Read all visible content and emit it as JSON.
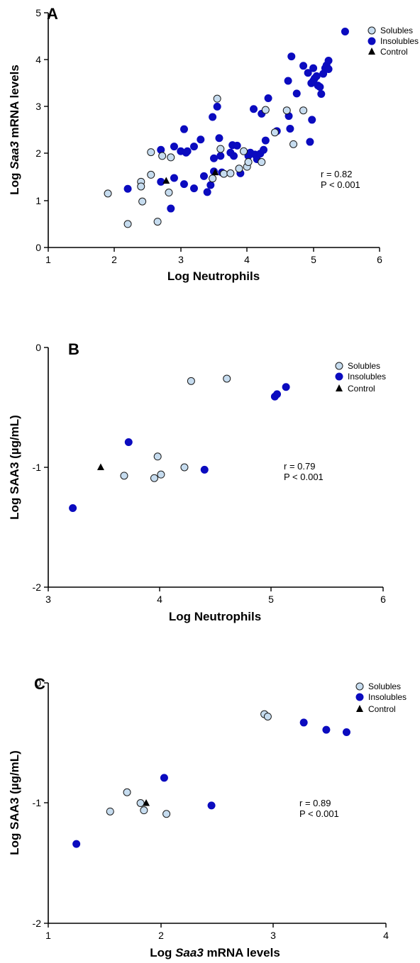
{
  "colors": {
    "solubles_fill": "#c6dcef",
    "solubles_stroke": "#1a1a1a",
    "insolubles_fill": "#0b0bbf",
    "control_fill": "#000000"
  },
  "chart_data": [
    {
      "panel": "A",
      "type": "scatter",
      "xlabel": "Log Neutrophils",
      "ylabel_pre": "Log ",
      "ylabel_italic": "Saa3",
      "ylabel_post": " mRNA levels",
      "xlim": [
        1,
        6
      ],
      "ylim": [
        0,
        5
      ],
      "xticks": [
        "1",
        "2",
        "3",
        "4",
        "5",
        "6"
      ],
      "yticks": [
        "0",
        "1",
        "2",
        "3",
        "4",
        "5"
      ],
      "legend": [
        "Solubles",
        "Insolubles",
        "Control"
      ],
      "stat_r": "r = 0.82",
      "stat_p": "P < 0.001",
      "series": [
        {
          "name": "Solubles",
          "points": [
            [
              1.9,
              1.15
            ],
            [
              2.2,
              0.5
            ],
            [
              2.4,
              1.4
            ],
            [
              2.4,
              1.3
            ],
            [
              2.42,
              0.98
            ],
            [
              2.55,
              2.03
            ],
            [
              2.55,
              1.55
            ],
            [
              2.65,
              0.55
            ],
            [
              2.72,
              1.95
            ],
            [
              2.82,
              1.17
            ],
            [
              2.85,
              1.92
            ],
            [
              3.48,
              1.47
            ],
            [
              3.55,
              3.17
            ],
            [
              3.6,
              2.1
            ],
            [
              3.65,
              1.57
            ],
            [
              3.75,
              1.58
            ],
            [
              3.88,
              1.68
            ],
            [
              3.95,
              2.05
            ],
            [
              4.0,
              1.72
            ],
            [
              4.02,
              1.82
            ],
            [
              4.22,
              1.82
            ],
            [
              4.28,
              2.93
            ],
            [
              4.42,
              2.45
            ],
            [
              4.6,
              2.92
            ],
            [
              4.7,
              2.2
            ],
            [
              4.85,
              2.92
            ]
          ]
        },
        {
          "name": "Insolubles",
          "points": [
            [
              2.2,
              1.25
            ],
            [
              2.7,
              2.08
            ],
            [
              2.7,
              1.4
            ],
            [
              2.85,
              0.83
            ],
            [
              2.9,
              2.15
            ],
            [
              2.9,
              1.48
            ],
            [
              3.0,
              2.05
            ],
            [
              3.05,
              1.35
            ],
            [
              3.05,
              2.52
            ],
            [
              3.08,
              2.02
            ],
            [
              3.1,
              2.05
            ],
            [
              3.2,
              2.15
            ],
            [
              3.2,
              1.26
            ],
            [
              3.3,
              2.3
            ],
            [
              3.35,
              1.52
            ],
            [
              3.4,
              1.18
            ],
            [
              3.45,
              1.33
            ],
            [
              3.48,
              2.78
            ],
            [
              3.5,
              1.9
            ],
            [
              3.5,
              1.62
            ],
            [
              3.55,
              3.0
            ],
            [
              3.58,
              2.33
            ],
            [
              3.6,
              1.95
            ],
            [
              3.62,
              1.6
            ],
            [
              3.75,
              2.02
            ],
            [
              3.78,
              2.18
            ],
            [
              3.8,
              1.95
            ],
            [
              3.85,
              2.17
            ],
            [
              3.9,
              1.58
            ],
            [
              4.02,
              1.95
            ],
            [
              4.05,
              2.02
            ],
            [
              4.1,
              2.95
            ],
            [
              4.12,
              1.98
            ],
            [
              4.15,
              1.88
            ],
            [
              4.2,
              2.0
            ],
            [
              4.22,
              2.85
            ],
            [
              4.25,
              2.08
            ],
            [
              4.28,
              2.28
            ],
            [
              4.32,
              3.18
            ],
            [
              4.45,
              2.48
            ],
            [
              4.62,
              3.55
            ],
            [
              4.63,
              2.8
            ],
            [
              4.65,
              2.53
            ],
            [
              4.67,
              4.07
            ],
            [
              4.75,
              3.28
            ],
            [
              4.85,
              3.87
            ],
            [
              4.92,
              3.72
            ],
            [
              4.95,
              2.25
            ],
            [
              4.97,
              3.5
            ],
            [
              4.98,
              2.72
            ],
            [
              5.0,
              3.55
            ],
            [
              5.0,
              3.82
            ],
            [
              5.02,
              3.6
            ],
            [
              5.05,
              3.65
            ],
            [
              5.07,
              3.45
            ],
            [
              5.1,
              3.42
            ],
            [
              5.12,
              3.27
            ],
            [
              5.15,
              3.7
            ],
            [
              5.18,
              3.82
            ],
            [
              5.2,
              3.88
            ],
            [
              5.23,
              3.8
            ],
            [
              5.23,
              3.98
            ],
            [
              5.48,
              4.6
            ]
          ]
        },
        {
          "name": "Control",
          "points": [
            [
              2.78,
              1.42
            ],
            [
              3.52,
              1.6
            ]
          ]
        }
      ]
    },
    {
      "panel": "B",
      "type": "scatter",
      "xlabel": "Log Neutrophils",
      "ylabel": "Log SAA3 (µg/mL)",
      "xlim": [
        3,
        6
      ],
      "ylim": [
        -2,
        0
      ],
      "xticks": [
        "3",
        "4",
        "5",
        "6"
      ],
      "yticks": [
        "-2",
        "-1",
        "0"
      ],
      "legend": [
        "Solubles",
        "Insolubles",
        "Control"
      ],
      "stat_r": "r = 0.79",
      "stat_p": "P < 0.001",
      "series": [
        {
          "name": "Solubles",
          "points": [
            [
              3.68,
              -1.07
            ],
            [
              3.95,
              -1.09
            ],
            [
              3.98,
              -0.91
            ],
            [
              4.01,
              -1.06
            ],
            [
              4.22,
              -1.0
            ],
            [
              4.28,
              -0.28
            ],
            [
              4.6,
              -0.26
            ]
          ]
        },
        {
          "name": "Insolubles",
          "points": [
            [
              3.22,
              -1.34
            ],
            [
              3.72,
              -0.79
            ],
            [
              4.4,
              -1.02
            ],
            [
              5.03,
              -0.41
            ],
            [
              5.05,
              -0.39
            ],
            [
              5.13,
              -0.33
            ]
          ]
        },
        {
          "name": "Control",
          "points": [
            [
              3.47,
              -1.0
            ]
          ]
        }
      ]
    },
    {
      "panel": "C",
      "type": "scatter",
      "xlabel_pre": "Log ",
      "xlabel_italic": "Saa3",
      "xlabel_post": " mRNA levels",
      "ylabel": "Log SAA3 (µg/mL)",
      "xlim": [
        1,
        4
      ],
      "ylim": [
        -2,
        0
      ],
      "xticks": [
        "1",
        "2",
        "3",
        "4"
      ],
      "yticks": [
        "-2",
        "-1",
        "0"
      ],
      "legend": [
        "Solubles",
        "Insolubles",
        "Control"
      ],
      "stat_r": "r = 0.89",
      "stat_p": "P < 0.001",
      "series": [
        {
          "name": "Solubles",
          "points": [
            [
              1.55,
              -1.07
            ],
            [
              1.7,
              -0.91
            ],
            [
              1.82,
              -1.0
            ],
            [
              1.85,
              -1.06
            ],
            [
              2.05,
              -1.09
            ],
            [
              2.92,
              -0.26
            ],
            [
              2.95,
              -0.28
            ]
          ]
        },
        {
          "name": "Insolubles",
          "points": [
            [
              1.25,
              -1.34
            ],
            [
              2.03,
              -0.79
            ],
            [
              2.45,
              -1.02
            ],
            [
              3.27,
              -0.33
            ],
            [
              3.47,
              -0.39
            ],
            [
              3.65,
              -0.41
            ]
          ]
        },
        {
          "name": "Control",
          "points": [
            [
              1.87,
              -1.0
            ]
          ]
        }
      ]
    }
  ]
}
